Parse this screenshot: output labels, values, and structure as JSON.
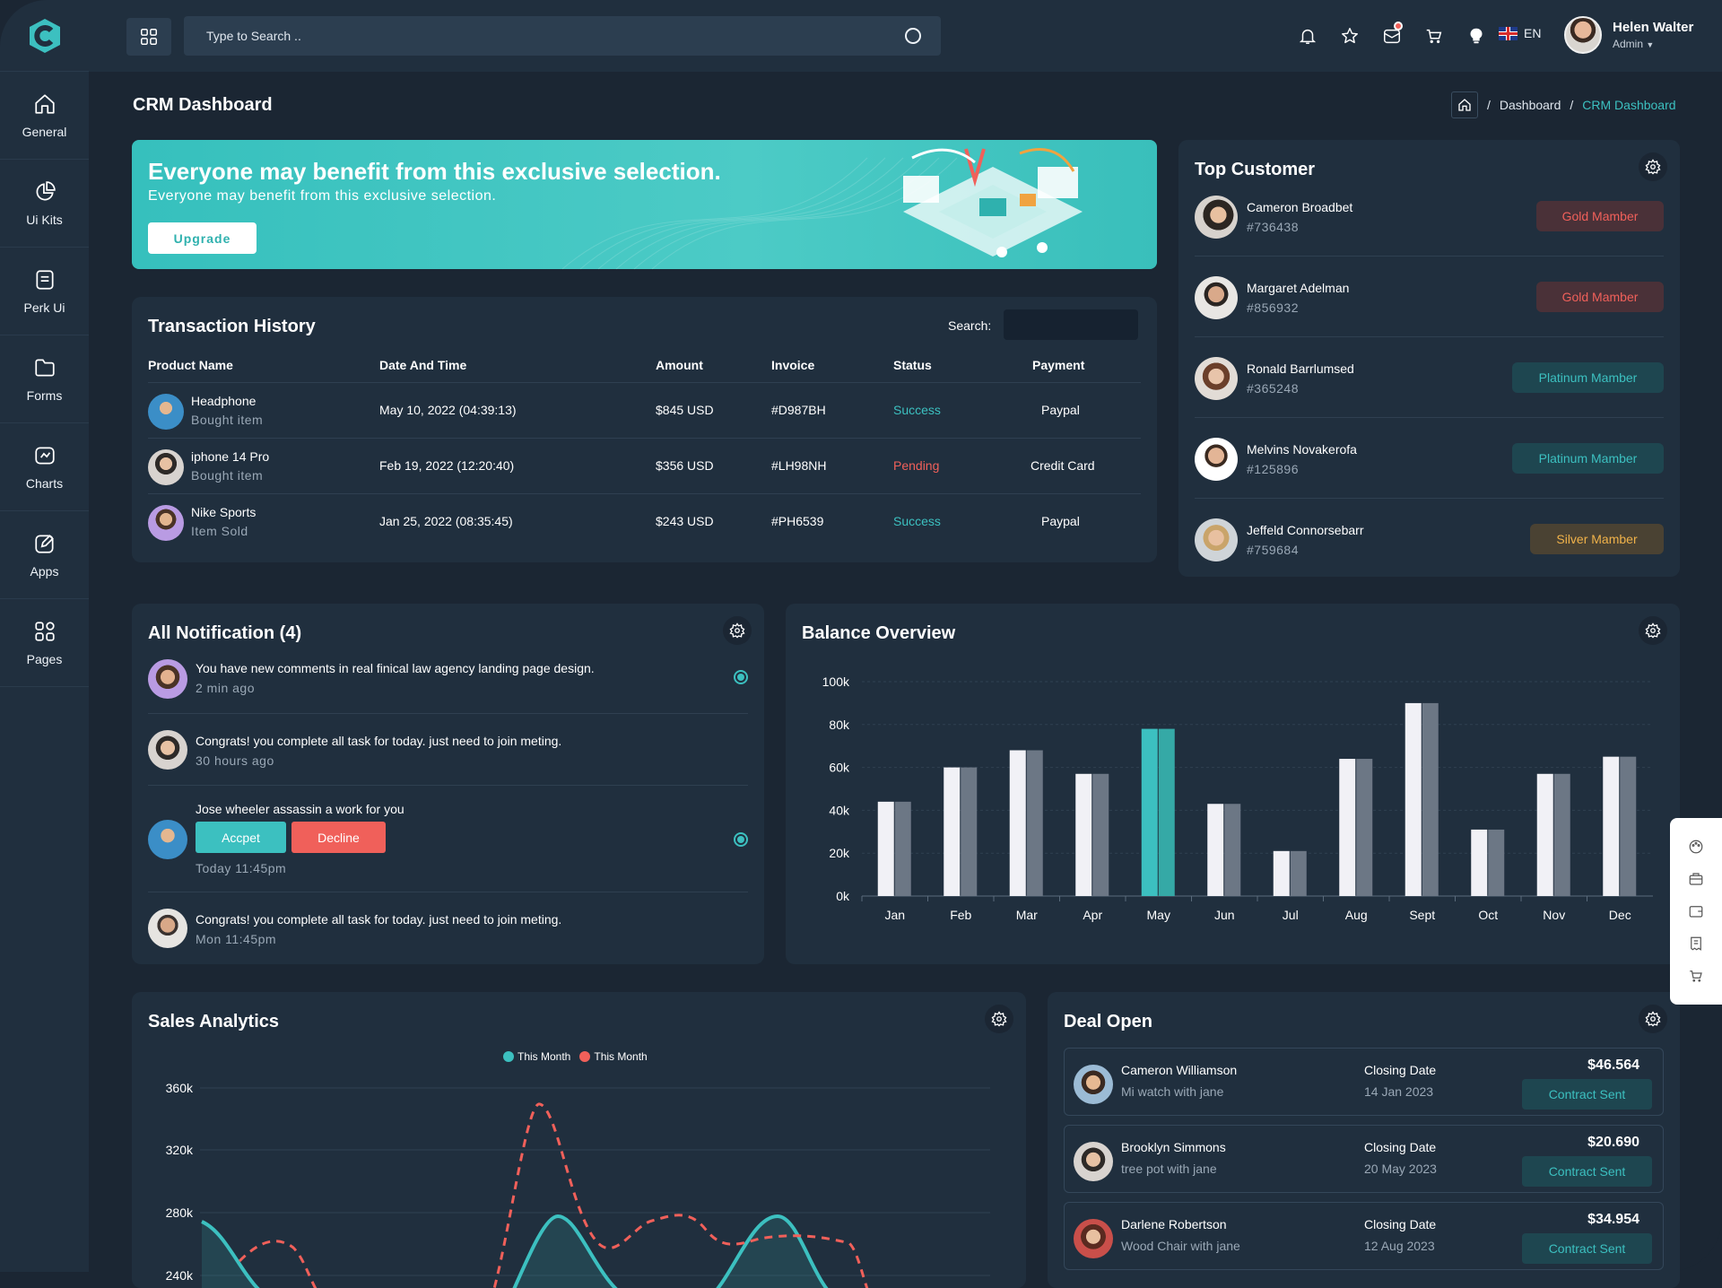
{
  "sidebar": {
    "items": [
      {
        "label": "General",
        "icon": "home-icon"
      },
      {
        "label": "Ui Kits",
        "icon": "pie-icon"
      },
      {
        "label": "Perk Ui",
        "icon": "document-icon"
      },
      {
        "label": "Forms",
        "icon": "folder-icon"
      },
      {
        "label": "Charts",
        "icon": "chart-box-icon"
      },
      {
        "label": "Apps",
        "icon": "edit-icon"
      },
      {
        "label": "Pages",
        "icon": "grid-icon"
      }
    ]
  },
  "header": {
    "search_placeholder": "Type to Search ..",
    "language": "EN",
    "user": {
      "name": "Helen Walter",
      "role": "Admin"
    }
  },
  "page": {
    "title": "CRM Dashboard",
    "breadcrumb": [
      "Dashboard",
      "CRM Dashboard"
    ]
  },
  "banner": {
    "heading": "Everyone may benefit from this exclusive selection.",
    "subtext": "Everyone may benefit from this exclusive selection.",
    "button": "Upgrade"
  },
  "transactions": {
    "title": "Transaction History",
    "search_label": "Search:",
    "columns": [
      "Product Name",
      "Date And Time",
      "Amount",
      "Invoice",
      "Status",
      "Payment"
    ],
    "rows": [
      {
        "product": "Headphone",
        "sub": "Bought item",
        "date": "May 10, 2022 (04:39:13)",
        "amount": "$845 USD",
        "invoice": "#D987BH",
        "status": "Success",
        "payment": "Paypal"
      },
      {
        "product": "iphone 14 Pro",
        "sub": "Bought item",
        "date": "Feb 19, 2022 (12:20:40)",
        "amount": "$356 USD",
        "invoice": "#LH98NH",
        "status": "Pending",
        "payment": "Credit Card"
      },
      {
        "product": "Nike Sports",
        "sub": "Item Sold",
        "date": "Jan 25, 2022 (08:35:45)",
        "amount": "$243 USD",
        "invoice": "#PH6539",
        "status": "Success",
        "payment": "Paypal"
      }
    ]
  },
  "top_customer": {
    "title": "Top Customer",
    "items": [
      {
        "name": "Cameron Broadbet",
        "id": "#736438",
        "badge": "Gold Mamber",
        "tier": "gold"
      },
      {
        "name": "Margaret Adelman",
        "id": "#856932",
        "badge": "Gold Mamber",
        "tier": "gold"
      },
      {
        "name": "Ronald Barrlumsed",
        "id": "#365248",
        "badge": "Platinum Mamber",
        "tier": "plat"
      },
      {
        "name": "Melvins Novakerofa",
        "id": "#125896",
        "badge": "Platinum Mamber",
        "tier": "plat"
      },
      {
        "name": "Jeffeld Connorsebarr",
        "id": "#759684",
        "badge": "Silver Mamber",
        "tier": "silver"
      }
    ]
  },
  "notifications": {
    "title": "All Notification (4)",
    "items": [
      {
        "text": "You have new comments in real finical law agency landing page design.",
        "time": "2 min ago"
      },
      {
        "text": "Congrats! you complete all task for today. just need to join meting.",
        "time": "30 hours ago"
      },
      {
        "text": "Jose wheeler assassin a work for you",
        "time": "Today 11:45pm",
        "accept": "Accpet",
        "decline": "Decline"
      },
      {
        "text": "Congrats! you complete all task for today. just need to join meting.",
        "time": "Mon 11:45pm"
      }
    ]
  },
  "balance": {
    "title": "Balance Overview"
  },
  "sales": {
    "title": "Sales Analytics",
    "legend": [
      "This Month",
      "This Month"
    ]
  },
  "deals": {
    "title": "Deal Open",
    "closing_label": "Closing Date",
    "items": [
      {
        "name": "Cameron Williamson",
        "sub": "Mi watch with jane",
        "date": "14 Jan 2023",
        "amount": "$46.564",
        "button": "Contract Sent"
      },
      {
        "name": "Brooklyn Simmons",
        "sub": "tree pot with jane",
        "date": "20 May 2023",
        "amount": "$20.690",
        "button": "Contract Sent"
      },
      {
        "name": "Darlene Robertson",
        "sub": "Wood Chair with jane",
        "date": "12 Aug 2023",
        "amount": "$34.954",
        "button": "Contract Sent"
      }
    ]
  },
  "chart_data": [
    {
      "type": "bar",
      "categories": [
        "Jan",
        "Feb",
        "Mar",
        "Apr",
        "May",
        "Jun",
        "Jul",
        "Aug",
        "Sept",
        "Oct",
        "Nov",
        "Dec"
      ],
      "series": [
        {
          "values": [
            44,
            60,
            68,
            57,
            78,
            43,
            21,
            64,
            90,
            31,
            57,
            65
          ]
        },
        {
          "values": [
            44,
            60,
            68,
            57,
            78,
            43,
            21,
            64,
            90,
            31,
            57,
            65
          ]
        }
      ],
      "highlight_index": 4,
      "yticks": [
        "0k",
        "20k",
        "40k",
        "60k",
        "80k",
        "100k"
      ],
      "ylim": [
        0,
        100
      ],
      "colors": {
        "primary": "#f1f1f6",
        "secondary": "#6c7785",
        "highlight": "#3cc0c0",
        "highlight2": "#35a9a6"
      }
    },
    {
      "type": "line",
      "legend": [
        "This Month",
        "This Month"
      ],
      "yticks": [
        "360k",
        "320k",
        "280k",
        "240k"
      ],
      "colors": {
        "teal": "#3cc0c0",
        "red": "#f0605a"
      }
    }
  ]
}
